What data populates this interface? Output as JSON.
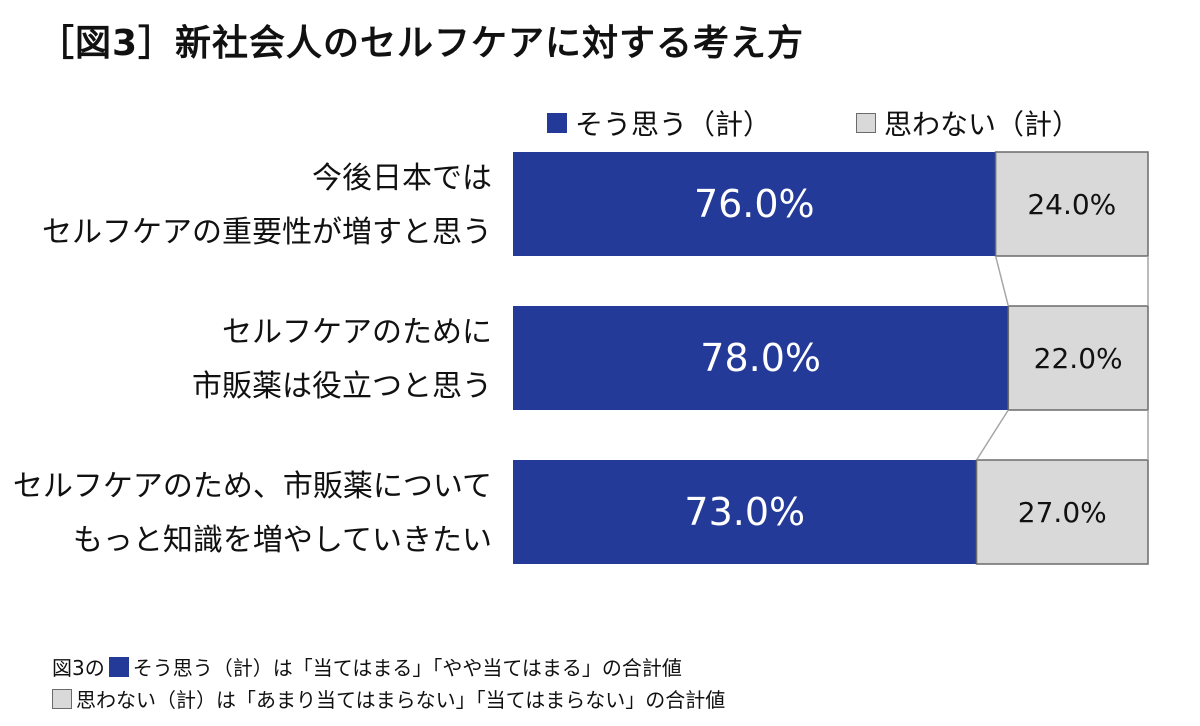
{
  "title": "［図3］新社会人のセルフケアに対する考え方",
  "legend": {
    "agree": "そう思う（計）",
    "disagree": "思わない（計）"
  },
  "colors": {
    "agree": "#233a99",
    "disagree": "#d9d9d9",
    "disagree_border": "#6b6b6b",
    "connector": "#a6a6a6"
  },
  "categories": [
    {
      "line1": "今後日本では",
      "line2": "セルフケアの重要性が増すと思う"
    },
    {
      "line1": "セルフケアのために",
      "line2": "市販薬は役立つと思う"
    },
    {
      "line1": "セルフケアのため、市販薬について",
      "line2": "もっと知識を増やしていきたい"
    }
  ],
  "chart_data": {
    "type": "bar",
    "stacked": true,
    "orientation": "horizontal",
    "percent": true,
    "categories": [
      "今後日本では セルフケアの重要性が増すと思う",
      "セルフケアのために 市販薬は役立つと思う",
      "セルフケアのため、市販薬について もっと知識を増やしていきたい"
    ],
    "series": [
      {
        "name": "そう思う（計）",
        "values": [
          76.0,
          78.0,
          73.0
        ],
        "labels": [
          "76.0%",
          "78.0%",
          "73.0%"
        ]
      },
      {
        "name": "思わない（計）",
        "values": [
          24.0,
          22.0,
          27.0
        ],
        "labels": [
          "24.0%",
          "22.0%",
          "27.0%"
        ]
      }
    ],
    "xlim": [
      0,
      100
    ],
    "legend_position": "top",
    "grid": false,
    "connector_lines": true
  },
  "footnote": {
    "prefix": "図3の",
    "line1": "そう思う（計）は「当てはまる」「やや当てはまる」の合計値",
    "line2": "思わない（計）は「あまり当てはまらない」「当てはまらない」の合計値"
  }
}
